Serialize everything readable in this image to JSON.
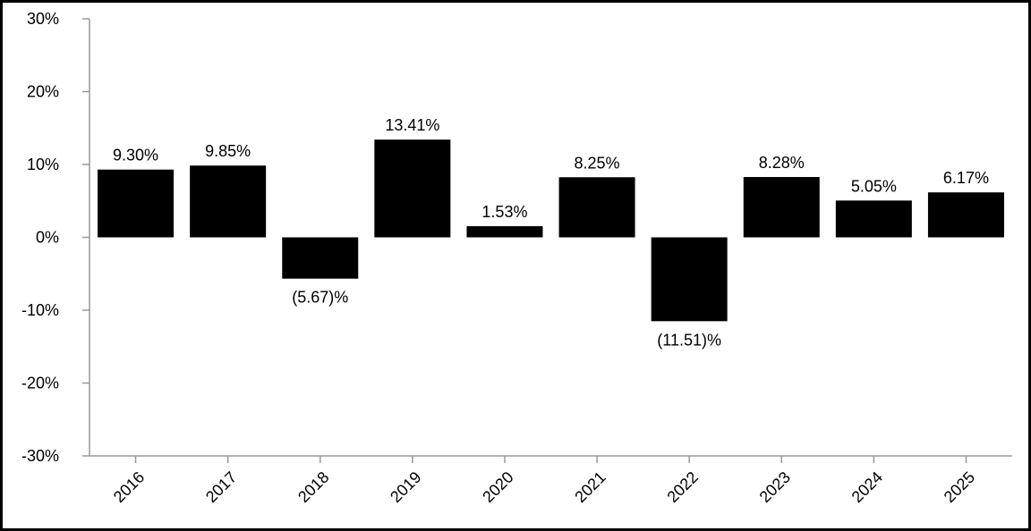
{
  "chart_data": {
    "type": "bar",
    "categories": [
      "2016",
      "2017",
      "2018",
      "2019",
      "2020",
      "2021",
      "2022",
      "2023",
      "2024",
      "2025"
    ],
    "values": [
      9.3,
      9.85,
      -5.67,
      13.41,
      1.53,
      8.25,
      -11.51,
      8.28,
      5.05,
      6.17
    ],
    "data_labels": [
      "9.30%",
      "9.85%",
      "(5.67)%",
      "13.41%",
      "1.53%",
      "8.25%",
      "(11.51)%",
      "8.28%",
      "5.05%",
      "6.17%"
    ],
    "ylim": [
      -30,
      30
    ],
    "yticks": [
      30,
      20,
      10,
      0,
      -10,
      -20,
      -30
    ],
    "ytick_labels": [
      "30%",
      "20%",
      "10%",
      "0%",
      "-10%",
      "-20%",
      "-30%"
    ],
    "title": "",
    "xlabel": "",
    "ylabel": "",
    "grid": false,
    "legend": "none",
    "bar_color": "#000000",
    "axis_color": "#999999"
  }
}
